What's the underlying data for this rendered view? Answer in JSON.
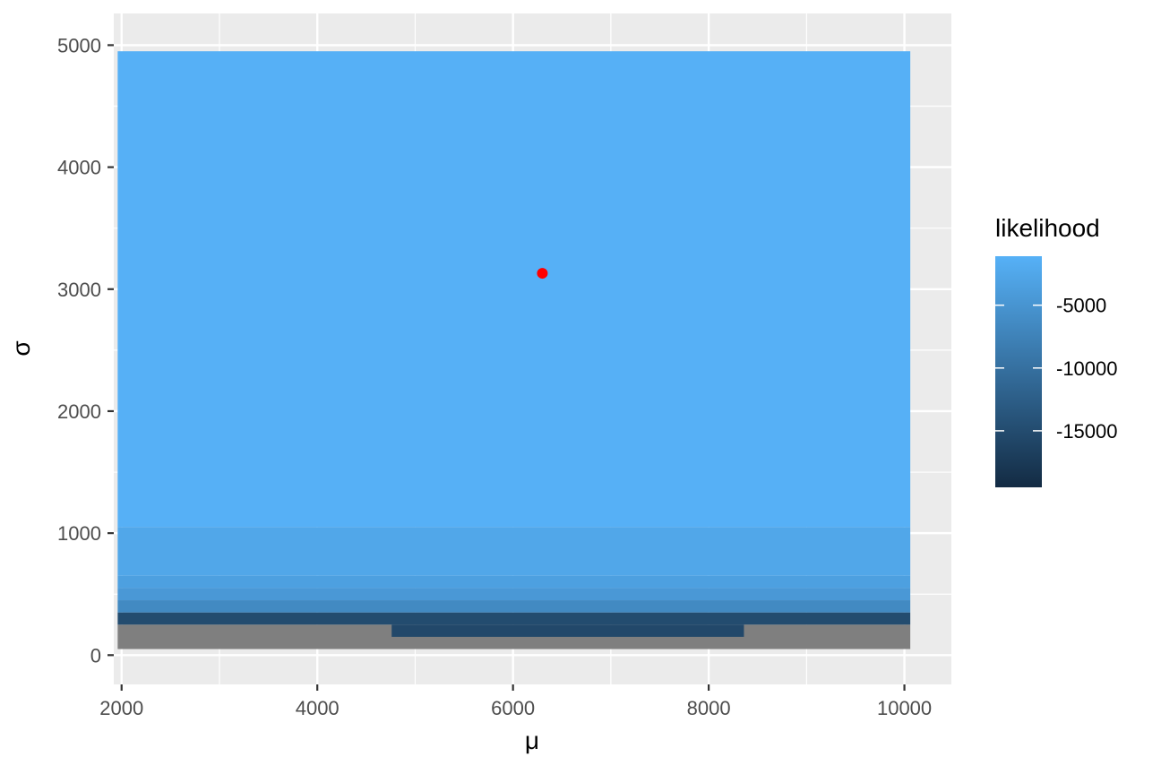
{
  "chart_data": {
    "type": "heatmap",
    "xlabel": "μ",
    "ylabel": "σ",
    "xlim": [
      1920,
      10480
    ],
    "ylim": [
      -240,
      5260
    ],
    "x_ticks": [
      2000,
      4000,
      6000,
      8000,
      10000
    ],
    "x_tick_labels": [
      "2000",
      "4000",
      "6000",
      "8000",
      "10000"
    ],
    "y_ticks": [
      0,
      1000,
      2000,
      3000,
      4000,
      5000
    ],
    "y_tick_labels": [
      "0",
      "1000",
      "2000",
      "3000",
      "4000",
      "5000"
    ],
    "grid": true,
    "legend": {
      "title": "likelihood",
      "placement": "right",
      "breaks": [
        -5000,
        -10000,
        -15000
      ],
      "labels": [
        "-5000",
        "-10000",
        "-15000"
      ],
      "range": [
        -19500,
        -1100
      ],
      "color_low": "#132b43",
      "color_high": "#56b1f7"
    },
    "tiles": [
      {
        "x0": 1960,
        "x1": 10060,
        "y0": 50,
        "y1": 250,
        "value": null
      },
      {
        "x0": 4760,
        "x1": 8360,
        "y0": 150,
        "y1": 250,
        "value": -15500
      },
      {
        "x0": 1960,
        "x1": 10060,
        "y0": 250,
        "y1": 350,
        "value": -15000
      },
      {
        "x0": 1960,
        "x1": 10060,
        "y0": 350,
        "y1": 450,
        "value": -6500
      },
      {
        "x0": 1960,
        "x1": 10060,
        "y0": 450,
        "y1": 550,
        "value": -4500
      },
      {
        "x0": 1960,
        "x1": 10060,
        "y0": 550,
        "y1": 650,
        "value": -3500
      },
      {
        "x0": 1960,
        "x1": 10060,
        "y0": 650,
        "y1": 1050,
        "value": -2500
      },
      {
        "x0": 1960,
        "x1": 10060,
        "y0": 1050,
        "y1": 4950,
        "value": -1200
      }
    ],
    "points": [
      {
        "x": 6300,
        "y": 3130
      }
    ],
    "point_color": "#ff0000",
    "na_color": "#7f7f7f"
  }
}
